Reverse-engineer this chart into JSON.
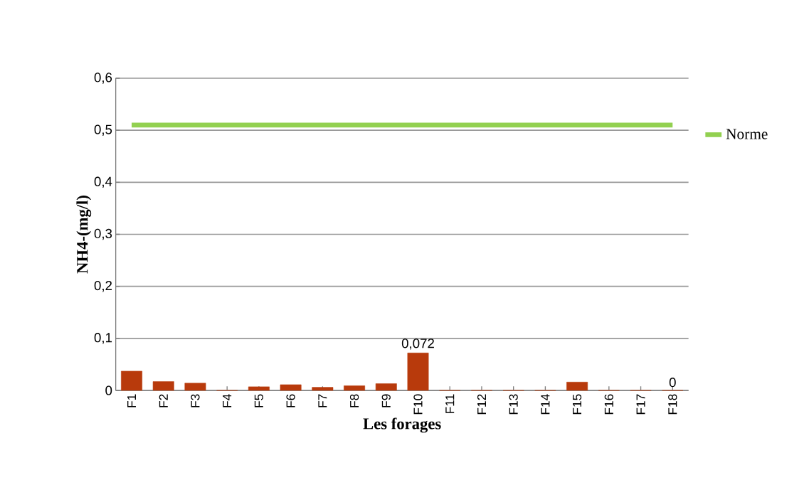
{
  "chart_data": {
    "type": "bar",
    "xlabel": "Les forages",
    "ylabel": "NH4-(mg/l)",
    "categories": [
      "F1",
      "F2",
      "F3",
      "F4",
      "F5",
      "F6",
      "F7",
      "F8",
      "F9",
      "F10",
      "F11",
      "F12",
      "F13",
      "F14",
      "F15",
      "F16",
      "F17",
      "F18"
    ],
    "series": [
      {
        "color": "#b83a0c",
        "values": [
          0.037,
          0.017,
          0.014,
          0,
          0.007,
          0.011,
          0.006,
          0.009,
          0.013,
          0.072,
          0,
          0,
          0,
          0,
          0.016,
          0,
          0,
          0
        ],
        "value_labels": [
          null,
          null,
          null,
          null,
          null,
          null,
          null,
          null,
          null,
          "0,072",
          null,
          null,
          null,
          null,
          null,
          null,
          null,
          "0"
        ]
      },
      {
        "type": "line",
        "name": "Norme",
        "color": "#92d050",
        "values": [
          0.51,
          0.51,
          0.51,
          0.51,
          0.51,
          0.51,
          0.51,
          0.51,
          0.51,
          0.51,
          0.51,
          0.51,
          0.51,
          0.51,
          0.51,
          0.51,
          0.51,
          0.51
        ]
      }
    ],
    "ylim": [
      0,
      0.6
    ],
    "yticks": [
      0,
      {
        "value": 0.1,
        "label": "0,1"
      },
      {
        "value": 0.2,
        "label": "0,2"
      },
      {
        "value": 0.3,
        "label": "0,3"
      },
      {
        "value": 0.4,
        "label": "0,4"
      },
      {
        "value": 0.5,
        "label": "0,5"
      },
      {
        "value": 0.6,
        "label": "0,6"
      }
    ],
    "grid": "y",
    "legend": "right"
  }
}
